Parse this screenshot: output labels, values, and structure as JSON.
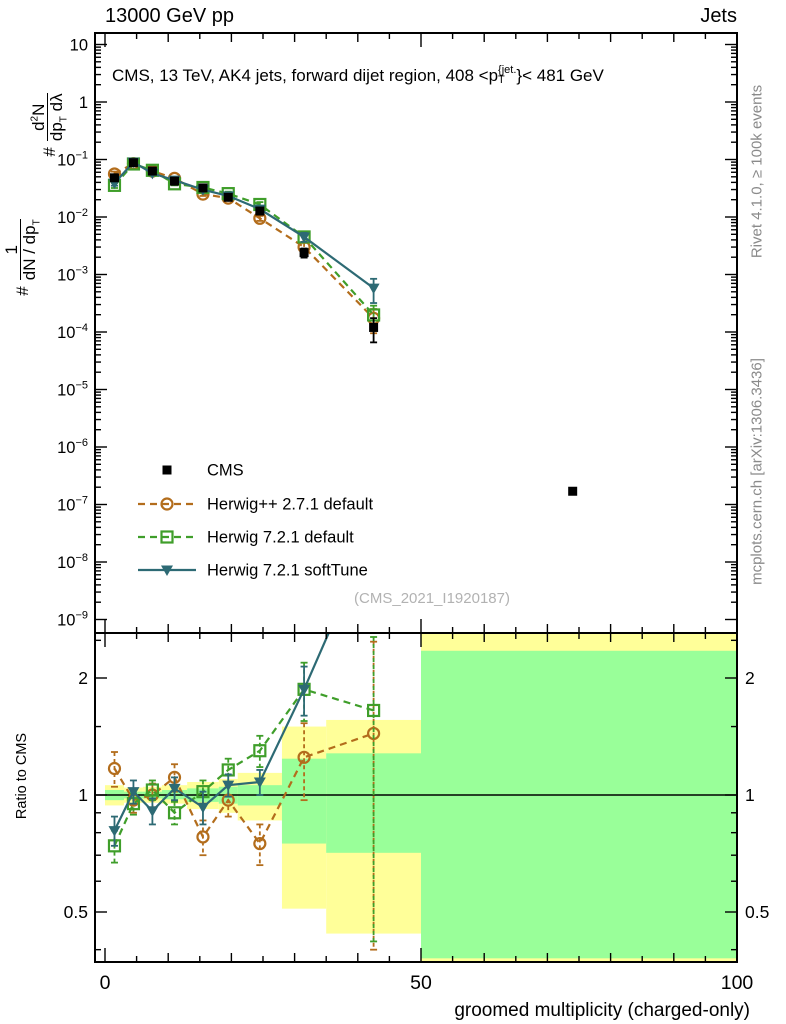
{
  "header": {
    "left_title": "13000 GeV pp",
    "right_title": "Jets"
  },
  "plot_title": {
    "a": "CMS, 13 TeV, AK4 jets, forward dijet region, 408 <p",
    "sup": "{jet.",
    "sub": "T",
    "b": "}< 481 GeV"
  },
  "ylabel": {
    "hash": "#",
    "f1_num": "1",
    "f1_den_a": "dN / dp",
    "f1_den_sub": "T",
    "f2_num_a": "d",
    "f2_num_sup": "2",
    "f2_num_b": "N",
    "f2_den_a": "dp",
    "f2_den_sub": "T",
    "f2_den_b": " dλ"
  },
  "xlabel": "groomed multiplicity (charged-only)",
  "ratio_ylabel": "Ratio to CMS",
  "watermark": "(CMS_2021_I1920187)",
  "side_notes": {
    "top": "Rivet 4.1.0, ≥ 100k events",
    "bottom": "mcplots.cern.ch [arXiv:1306.3436]"
  },
  "colors": {
    "cms": "#000000",
    "herwigpp": "#b36d1c",
    "herwig_default": "#3f9e2a",
    "herwig_soft": "#2d6a74",
    "band_yellow": "#ffff99",
    "band_green": "#99ff99",
    "axis": "#000000",
    "gray_text": "#8a8a8a",
    "watermark": "#b2b2b2"
  },
  "chart_data": {
    "type": "line",
    "title": "CMS, 13 TeV, AK4 jets, forward dijet region, 408 <pT{jet}< 481 GeV",
    "xlabel": "groomed multiplicity (charged-only)",
    "ylabel_main": "# 1/(dN/dpT) # d2N/(dpT dlambda)",
    "ylabel_ratio": "Ratio to CMS",
    "x": [
      1.5,
      4.5,
      7.5,
      11,
      15.5,
      19.5,
      24.5,
      31.5,
      42.5
    ],
    "bin_edges": [
      0,
      3,
      6,
      9,
      13,
      18,
      21,
      28,
      35,
      50,
      100
    ],
    "xlim": [
      -1.6,
      100
    ],
    "ylim_main": [
      1e-09,
      15.8
    ],
    "ylim_ratio": [
      0.372,
      2.61
    ],
    "xticks": {
      "labeled": [
        0,
        50,
        100
      ],
      "labels": [
        "0",
        "50",
        "100"
      ],
      "minor_step": 5,
      "mid_step": 10
    },
    "ytick_exponents": [
      1,
      0,
      -1,
      -2,
      -3,
      -4,
      -5,
      -6,
      -7,
      -8,
      -9
    ],
    "ratio_ticks": {
      "major": [
        0.5,
        1,
        2
      ],
      "labels": [
        "0.5",
        "1",
        "2"
      ],
      "minor": [
        0.4,
        0.6,
        0.7,
        0.8,
        0.9,
        1.5,
        2.5
      ]
    },
    "rel_err_main": [
      0.1,
      0.05,
      0.05,
      0.06,
      0.07,
      0.08,
      0.1,
      0.18,
      0.45
    ],
    "series": [
      {
        "name": "CMS",
        "marker": "filled-square",
        "color_key": "cms",
        "dashed": false,
        "line": false,
        "values": [
          0.048,
          0.088,
          0.063,
          0.042,
          0.032,
          0.022,
          0.0127,
          0.0024,
          0.00012
        ],
        "extra_point": {
          "x": 74,
          "value": 1.7e-07
        }
      },
      {
        "name": "Herwig++ 2.7.1 default",
        "marker": "open-circle",
        "color_key": "herwigpp",
        "dashed": true,
        "line": true,
        "values": [
          0.056,
          0.085,
          0.063,
          0.047,
          0.025,
          0.0213,
          0.0095,
          0.003,
          0.000173
        ],
        "ratio": [
          1.17,
          0.97,
          1.0,
          1.11,
          0.78,
          0.97,
          0.75,
          1.25,
          1.44
        ],
        "ratio_err_lo": [
          1.05,
          0.9,
          0.93,
          1.02,
          0.7,
          0.88,
          0.66,
          0.97,
          0.4
        ],
        "ratio_err_hi": [
          1.29,
          1.04,
          1.07,
          1.2,
          0.86,
          1.06,
          0.84,
          1.53,
          2.48
        ]
      },
      {
        "name": "Herwig 7.2.1 default",
        "marker": "open-square",
        "color_key": "herwig_default",
        "dashed": true,
        "line": true,
        "values": [
          0.0355,
          0.0836,
          0.0649,
          0.0378,
          0.0326,
          0.0255,
          0.0165,
          0.0045,
          0.000198
        ],
        "ratio": [
          0.74,
          0.95,
          1.03,
          0.9,
          1.02,
          1.16,
          1.3,
          1.87,
          1.65
        ],
        "ratio_err_lo": [
          0.67,
          0.89,
          0.97,
          0.84,
          0.95,
          1.08,
          1.18,
          1.55,
          0.42
        ],
        "ratio_err_hi": [
          0.81,
          1.01,
          1.09,
          0.96,
          1.09,
          1.24,
          1.42,
          2.19,
          2.55
        ]
      },
      {
        "name": "Herwig 7.2.1 softTune",
        "marker": "filled-triangle-down",
        "color_key": "herwig_soft",
        "dashed": false,
        "line": true,
        "values": [
          0.0389,
          0.0898,
          0.0573,
          0.0437,
          0.0298,
          0.0233,
          0.0137,
          0.0045,
          0.00058
        ],
        "ratio": [
          0.81,
          1.02,
          0.91,
          1.04,
          0.93,
          1.06,
          1.08,
          1.87,
          4.8
        ],
        "ratio_err_lo": [
          0.74,
          0.95,
          0.84,
          0.97,
          0.84,
          0.99,
          1.0,
          1.6,
          4.0
        ],
        "ratio_err_hi": [
          0.88,
          1.09,
          0.98,
          1.11,
          1.02,
          1.13,
          1.16,
          2.14,
          5.6
        ]
      }
    ],
    "ratio_bands": {
      "yellow": [
        [
          0.94,
          1.06
        ],
        [
          0.955,
          1.045
        ],
        [
          0.955,
          1.05
        ],
        [
          0.95,
          1.06
        ],
        [
          0.92,
          1.08
        ],
        [
          0.9,
          1.1
        ],
        [
          0.86,
          1.14
        ],
        [
          0.51,
          1.5
        ],
        [
          0.44,
          1.56
        ],
        [
          0.3,
          2.8
        ]
      ],
      "green": [
        [
          0.97,
          1.03
        ],
        [
          0.98,
          1.02
        ],
        [
          0.98,
          1.02
        ],
        [
          0.975,
          1.03
        ],
        [
          0.96,
          1.04
        ],
        [
          0.95,
          1.05
        ],
        [
          0.94,
          1.06
        ],
        [
          0.75,
          1.24
        ],
        [
          0.71,
          1.28
        ],
        [
          0.38,
          2.35
        ]
      ]
    },
    "legend_order": [
      0,
      1,
      2,
      3
    ],
    "grid": false,
    "legend_position": "upper-left-lower-area"
  }
}
